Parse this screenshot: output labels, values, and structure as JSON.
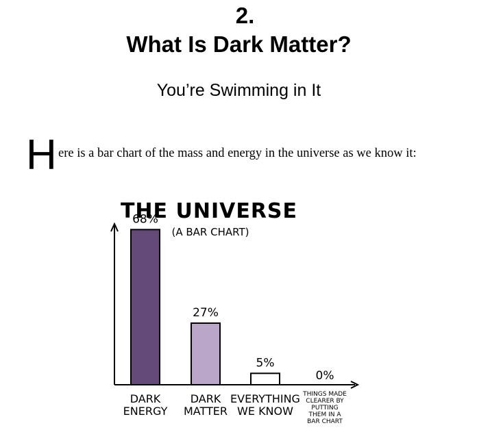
{
  "page": {
    "chapter_number": "2.",
    "chapter_title": "What Is Dark Matter?",
    "subtitle": "You’re Swimming in It",
    "drop_cap": "H",
    "intro_text": "ere is a bar chart of the mass and energy in the universe as we know it:"
  },
  "chart_data": {
    "type": "bar",
    "title": "THE UNIVERSE",
    "subtitle": "(A BAR CHART)",
    "categories": [
      [
        "DARK",
        "ENERGY"
      ],
      [
        "DARK",
        "MATTER"
      ],
      [
        "EVERYTHING",
        "WE KNOW"
      ],
      [
        "THINGS MADE",
        "CLEARER BY",
        "PUTTING",
        "THEM IN A",
        "BAR CHART"
      ]
    ],
    "values": [
      68,
      27,
      5,
      0
    ],
    "value_labels": [
      "68%",
      "27%",
      "5%",
      "0%"
    ],
    "colors": [
      "#634a78",
      "#b9a6c9",
      "#ffffff",
      "#ffffff"
    ],
    "ylim": [
      0,
      72
    ],
    "grid": false
  }
}
